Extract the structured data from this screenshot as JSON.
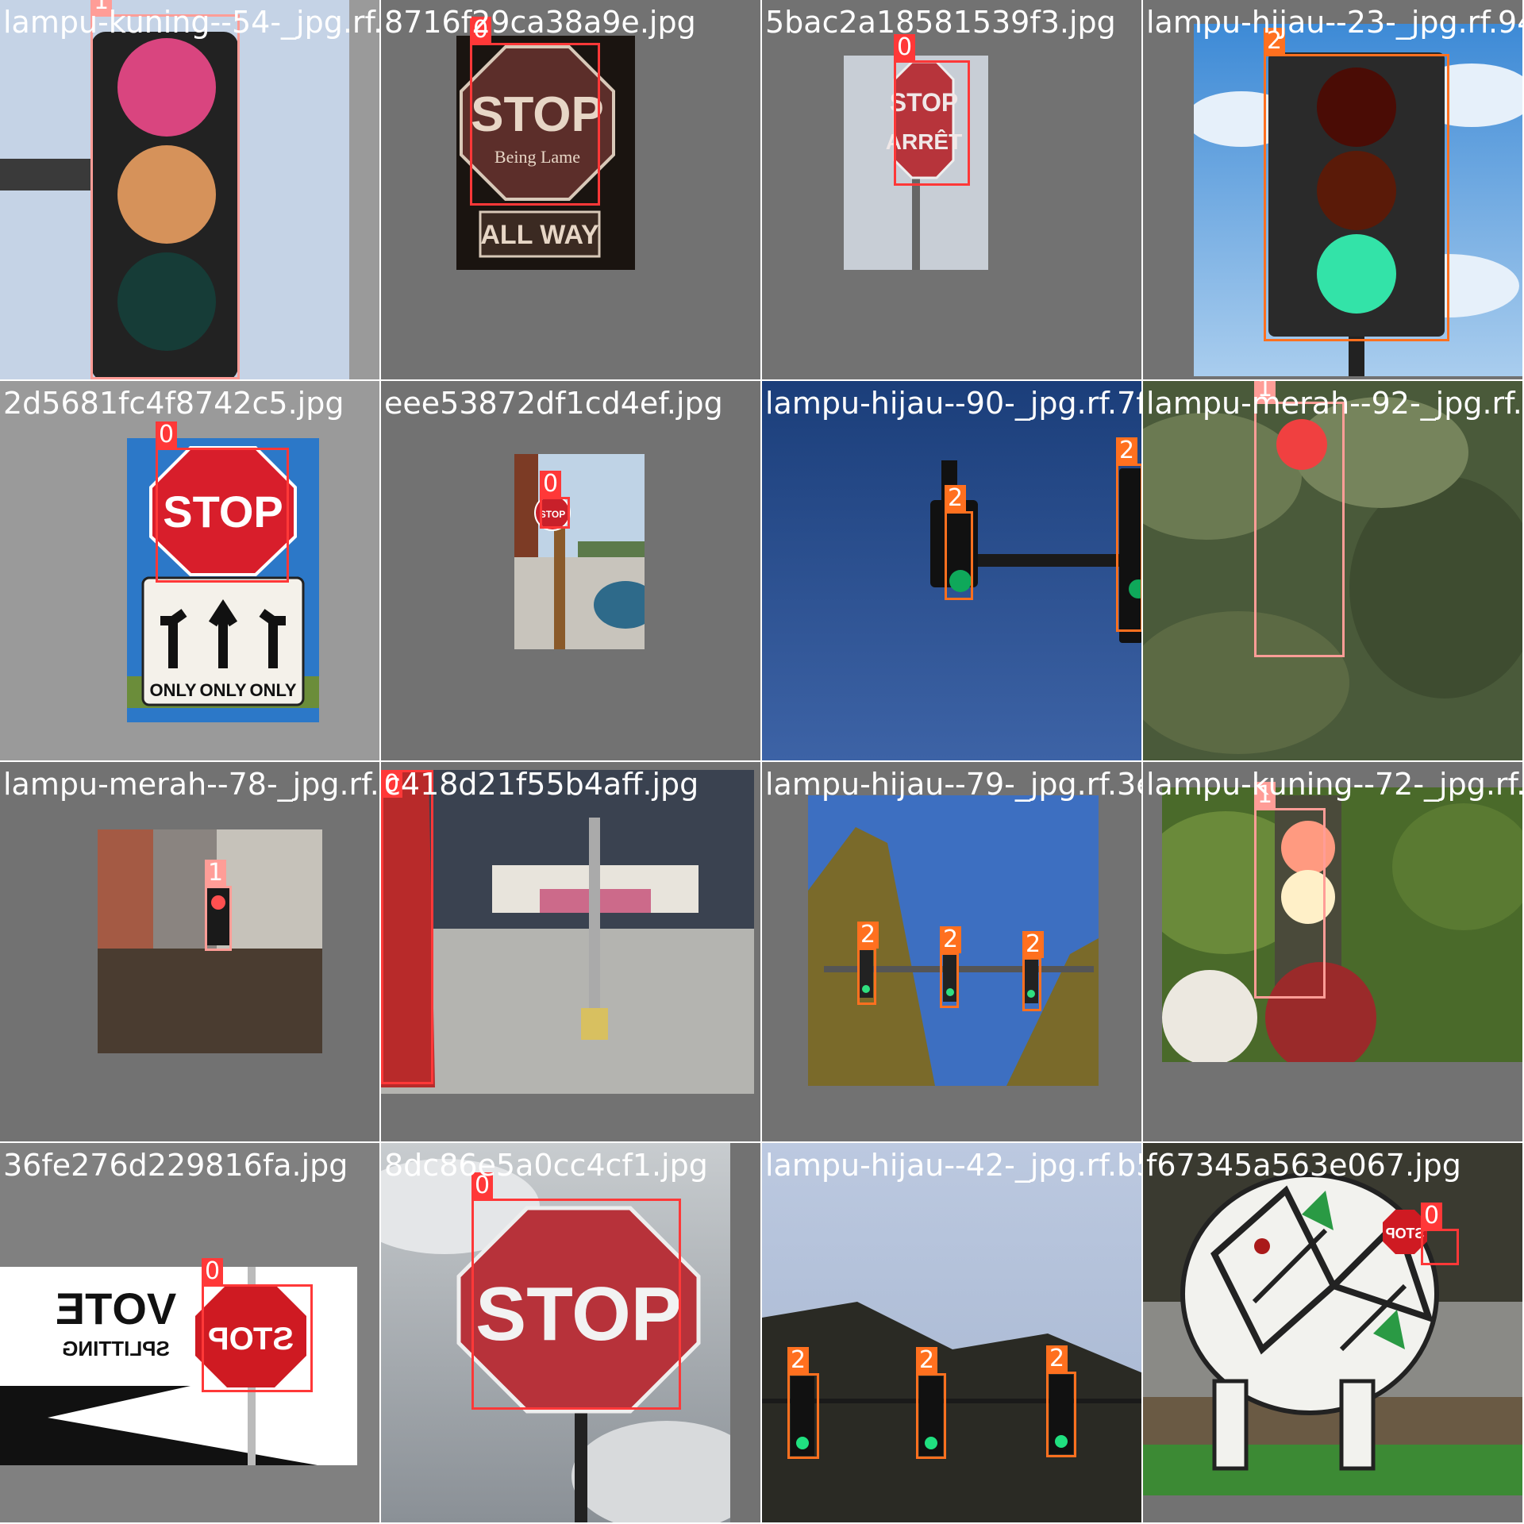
{
  "classes": {
    "0": {
      "color": "#ff3838"
    },
    "1": {
      "color": "#ff9d97"
    },
    "2": {
      "color": "#ff701f"
    }
  },
  "tiles": [
    {
      "filename": "lampu-kuning--54-_jpg.rf.498715572ee1954ed0da.jpg",
      "detections": [
        {
          "cls": "1"
        }
      ]
    },
    {
      "filename": "8716f29ca38a9e.jpg",
      "detections": [
        {
          "cls": "0"
        }
      ]
    },
    {
      "filename": "5bac2a18581539f3.jpg",
      "detections": [
        {
          "cls": "0"
        }
      ]
    },
    {
      "filename": "lampu-hijau--23-_jpg.rf.94f54",
      "detections": [
        {
          "cls": "2"
        }
      ]
    },
    {
      "filename": "2d5681fc4f8742c5.jpg",
      "detections": [
        {
          "cls": "0"
        }
      ]
    },
    {
      "filename": "eee53872df1cd4ef.jpg",
      "detections": [
        {
          "cls": "0"
        }
      ]
    },
    {
      "filename": "lampu-hijau--90-_jpg.rf.7f9a3f48fee2b58",
      "detections": [
        {
          "cls": "2"
        },
        {
          "cls": "2"
        }
      ]
    },
    {
      "filename": "lampu-merah--92-_jpg.rf.39b",
      "detections": [
        {
          "cls": "1"
        }
      ]
    },
    {
      "filename": "lampu-merah--78-_jpg.rf.4e0c4",
      "detections": [
        {
          "cls": "1"
        }
      ]
    },
    {
      "filename": "c418d21f55b4aff.jpg",
      "detections": [
        {
          "cls": "0"
        }
      ]
    },
    {
      "filename": "lampu-hijau--79-_jpg.rf.3e8c8",
      "detections": [
        {
          "cls": "2"
        },
        {
          "cls": "2"
        },
        {
          "cls": "2"
        }
      ]
    },
    {
      "filename": "lampu-kuning--72-_jpg.rf.61b",
      "detections": [
        {
          "cls": "1"
        }
      ]
    },
    {
      "filename": "36fe276d229816fa.jpg",
      "detections": [
        {
          "cls": "0"
        }
      ]
    },
    {
      "filename": "8dc86e5a0cc4cf1.jpg",
      "detections": [
        {
          "cls": "0"
        }
      ]
    },
    {
      "filename": "lampu-hijau--42-_jpg.rf.b5b1d6",
      "detections": [
        {
          "cls": "2"
        },
        {
          "cls": "2"
        },
        {
          "cls": "2"
        }
      ]
    },
    {
      "filename": "f67345a563e067.jpg",
      "detections": [
        {
          "cls": "0"
        }
      ]
    }
  ],
  "signs": {
    "stop": "STOP",
    "being_lame": "Being Lame",
    "all_way": "ALL WAY",
    "arret": "ARRÊT",
    "only": "ONLY",
    "vote": "VOTE",
    "splitting": "SPLITTING"
  }
}
